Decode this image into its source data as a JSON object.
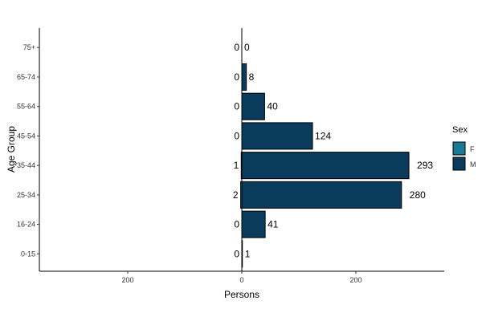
{
  "chart_data": {
    "type": "bar",
    "orientation": "horizontal-population-pyramid",
    "xlabel": "Persons",
    "ylabel": "Age Group",
    "categories": [
      "0-15",
      "16-24",
      "25-34",
      "35-44",
      "45-54",
      "55-64",
      "65-74",
      "75+"
    ],
    "x_ticks": [
      {
        "value": -200,
        "label": "200"
      },
      {
        "value": 0,
        "label": "0"
      },
      {
        "value": 200,
        "label": "200"
      }
    ],
    "xlim": [
      -355,
      355
    ],
    "legend": {
      "title": "Sex",
      "placement": "right",
      "entries": [
        {
          "label": "F",
          "color": "#1a7a96"
        },
        {
          "label": "M",
          "color": "#0a3b5c"
        }
      ]
    },
    "series": [
      {
        "name": "F",
        "color": "#1a7a96",
        "values": [
          0,
          0,
          2,
          1,
          0,
          0,
          0,
          0
        ]
      },
      {
        "name": "M",
        "color": "#0a3b5c",
        "values": [
          1,
          41,
          280,
          293,
          124,
          40,
          8,
          0
        ]
      }
    ],
    "grid": false
  }
}
